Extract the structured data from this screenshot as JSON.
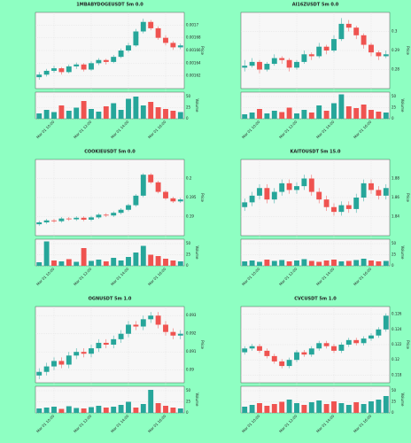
{
  "chart_data": [
    {
      "type": "candlestick",
      "title": "1MBABYDOGEUSDT 5m 0.0",
      "y_label": "Price",
      "volume_label": "Volume",
      "ohlc": [
        [
          0.001618,
          0.001626,
          0.001614,
          0.001622
        ],
        [
          0.001622,
          0.001631,
          0.001619,
          0.001628
        ],
        [
          0.001628,
          0.001636,
          0.001625,
          0.001632
        ],
        [
          0.001632,
          0.001634,
          0.001622,
          0.001626
        ],
        [
          0.001626,
          0.001638,
          0.001624,
          0.001635
        ],
        [
          0.001635,
          0.001641,
          0.001631,
          0.001638
        ],
        [
          0.001638,
          0.00164,
          0.001627,
          0.00163
        ],
        [
          0.00163,
          0.001643,
          0.001628,
          0.00164
        ],
        [
          0.00164,
          0.001648,
          0.001637,
          0.001645
        ],
        [
          0.001645,
          0.001647,
          0.001638,
          0.001642
        ],
        [
          0.001642,
          0.001653,
          0.00164,
          0.00165
        ],
        [
          0.00165,
          0.001663,
          0.001648,
          0.00166
        ],
        [
          0.00166,
          0.001672,
          0.001657,
          0.001668
        ],
        [
          0.001668,
          0.001694,
          0.001666,
          0.00169
        ],
        [
          0.00169,
          0.00171,
          0.001687,
          0.001705
        ],
        [
          0.001705,
          0.001708,
          0.001692,
          0.001695
        ],
        [
          0.001695,
          0.001698,
          0.001677,
          0.00168
        ],
        [
          0.00168,
          0.001684,
          0.001668,
          0.001672
        ],
        [
          0.001672,
          0.001675,
          0.001661,
          0.001665
        ],
        [
          0.001665,
          0.001671,
          0.001662,
          0.001668
        ]
      ],
      "volume": [
        12,
        20,
        15,
        30,
        18,
        25,
        40,
        22,
        16,
        28,
        35,
        20,
        45,
        50,
        30,
        38,
        26,
        22,
        18,
        15
      ],
      "ylim": [
        0.0016,
        0.00172
      ],
      "yticks": [
        0.00162,
        0.00164,
        0.00166,
        0.00168,
        0.0017
      ],
      "vlim": [
        0,
        60
      ],
      "vticks": [
        0,
        25,
        50
      ],
      "xticks": [
        {
          "value": 2,
          "label": "Mar 01 10:00"
        },
        {
          "value": 7,
          "label": "Mar 01 12:00"
        },
        {
          "value": 12,
          "label": "Mar 01 14:00"
        },
        {
          "value": 17,
          "label": "Mar 01 16:00"
        }
      ],
      "up_color": "#26a69a",
      "down_color": "#ef5350",
      "grid": true
    },
    {
      "type": "candlestick",
      "title": "AI16ZUSDT 5m 0.0",
      "y_label": "Price",
      "volume_label": "Volume",
      "ohlc": [
        [
          0.281,
          0.285,
          0.279,
          0.282
        ],
        [
          0.282,
          0.286,
          0.281,
          0.284
        ],
        [
          0.284,
          0.285,
          0.278,
          0.28
        ],
        [
          0.28,
          0.284,
          0.279,
          0.283
        ],
        [
          0.283,
          0.288,
          0.282,
          0.286
        ],
        [
          0.286,
          0.287,
          0.283,
          0.285
        ],
        [
          0.285,
          0.286,
          0.279,
          0.281
        ],
        [
          0.281,
          0.285,
          0.28,
          0.284
        ],
        [
          0.284,
          0.29,
          0.283,
          0.288
        ],
        [
          0.288,
          0.289,
          0.285,
          0.287
        ],
        [
          0.287,
          0.294,
          0.286,
          0.292
        ],
        [
          0.292,
          0.293,
          0.288,
          0.29
        ],
        [
          0.29,
          0.298,
          0.289,
          0.296
        ],
        [
          0.296,
          0.307,
          0.295,
          0.304
        ],
        [
          0.304,
          0.306,
          0.3,
          0.302
        ],
        [
          0.302,
          0.303,
          0.296,
          0.298
        ],
        [
          0.298,
          0.299,
          0.291,
          0.293
        ],
        [
          0.293,
          0.294,
          0.287,
          0.289
        ],
        [
          0.289,
          0.29,
          0.285,
          0.287
        ],
        [
          0.287,
          0.29,
          0.286,
          0.288
        ]
      ],
      "volume": [
        10,
        14,
        22,
        12,
        18,
        15,
        25,
        12,
        20,
        14,
        30,
        18,
        35,
        55,
        28,
        24,
        32,
        20,
        16,
        14
      ],
      "ylim": [
        0.27,
        0.31
      ],
      "yticks": [
        0.28,
        0.29,
        0.3
      ],
      "vlim": [
        0,
        60
      ],
      "vticks": [
        0,
        25,
        50
      ],
      "xticks": [
        {
          "value": 2,
          "label": "Mar 01 10:00"
        },
        {
          "value": 7,
          "label": "Mar 01 12:00"
        },
        {
          "value": 12,
          "label": "Mar 01 14:00"
        },
        {
          "value": 17,
          "label": "Mar 01 16:00"
        }
      ],
      "up_color": "#26a69a",
      "down_color": "#ef5350",
      "grid": true
    },
    {
      "type": "candlestick",
      "title": "COOKIEUSDT 5m 0.0",
      "y_label": "Price",
      "volume_label": "Volume",
      "ohlc": [
        [
          0.188,
          0.1889,
          0.1876,
          0.1885
        ],
        [
          0.1885,
          0.1894,
          0.1881,
          0.189
        ],
        [
          0.189,
          0.1894,
          0.1884,
          0.1888
        ],
        [
          0.1888,
          0.1899,
          0.1884,
          0.1895
        ],
        [
          0.1895,
          0.1899,
          0.1889,
          0.1893
        ],
        [
          0.1893,
          0.1901,
          0.1889,
          0.1897
        ],
        [
          0.1897,
          0.1901,
          0.1888,
          0.1892
        ],
        [
          0.1892,
          0.1902,
          0.1888,
          0.1898
        ],
        [
          0.1898,
          0.1909,
          0.1894,
          0.1905
        ],
        [
          0.1905,
          0.1909,
          0.1899,
          0.1903
        ],
        [
          0.1903,
          0.1914,
          0.1899,
          0.191
        ],
        [
          0.191,
          0.1922,
          0.1906,
          0.1918
        ],
        [
          0.1918,
          0.1934,
          0.1914,
          0.193
        ],
        [
          0.193,
          0.1959,
          0.1926,
          0.1955
        ],
        [
          0.1955,
          0.2014,
          0.1951,
          0.201
        ],
        [
          0.201,
          0.2014,
          0.1986,
          0.199
        ],
        [
          0.199,
          0.1994,
          0.1961,
          0.1965
        ],
        [
          0.1965,
          0.1969,
          0.1944,
          0.1948
        ],
        [
          0.1948,
          0.1952,
          0.1936,
          0.194
        ],
        [
          0.194,
          0.1949,
          0.1936,
          0.1945
        ]
      ],
      "volume": [
        8,
        55,
        12,
        10,
        15,
        9,
        40,
        11,
        14,
        10,
        18,
        12,
        20,
        30,
        45,
        25,
        22,
        16,
        12,
        10
      ],
      "ylim": [
        0.185,
        0.205
      ],
      "yticks": [
        0.19,
        0.195,
        0.2
      ],
      "vlim": [
        0,
        60
      ],
      "vticks": [
        0,
        25,
        50
      ],
      "xticks": [
        {
          "value": 2,
          "label": "Mar 01 10:00"
        },
        {
          "value": 7,
          "label": "Mar 01 12:00"
        },
        {
          "value": 12,
          "label": "Mar 01 14:00"
        },
        {
          "value": 17,
          "label": "Mar 01 16:00"
        }
      ],
      "up_color": "#26a69a",
      "down_color": "#ef5350",
      "grid": true
    },
    {
      "type": "candlestick",
      "title": "KAITOUSDT 5m 15.0",
      "y_label": "Price",
      "volume_label": "Volume",
      "ohlc": [
        [
          1.85,
          1.859,
          1.846,
          1.855
        ],
        [
          1.855,
          1.866,
          1.851,
          1.862
        ],
        [
          1.862,
          1.874,
          1.858,
          1.87
        ],
        [
          1.87,
          1.874,
          1.854,
          1.858
        ],
        [
          1.858,
          1.87,
          1.854,
          1.866
        ],
        [
          1.866,
          1.879,
          1.862,
          1.875
        ],
        [
          1.875,
          1.879,
          1.864,
          1.868
        ],
        [
          1.868,
          1.876,
          1.864,
          1.872
        ],
        [
          1.872,
          1.884,
          1.868,
          1.88
        ],
        [
          1.88,
          1.884,
          1.862,
          1.866
        ],
        [
          1.866,
          1.87,
          1.854,
          1.858
        ],
        [
          1.858,
          1.862,
          1.846,
          1.85
        ],
        [
          1.85,
          1.854,
          1.841,
          1.845
        ],
        [
          1.845,
          1.856,
          1.841,
          1.852
        ],
        [
          1.852,
          1.856,
          1.844,
          1.848
        ],
        [
          1.848,
          1.864,
          1.844,
          1.86
        ],
        [
          1.86,
          1.879,
          1.856,
          1.875
        ],
        [
          1.875,
          1.879,
          1.864,
          1.868
        ],
        [
          1.868,
          1.872,
          1.858,
          1.862
        ],
        [
          1.862,
          1.874,
          1.858,
          1.87
        ]
      ],
      "volume": [
        10,
        12,
        9,
        14,
        11,
        13,
        10,
        12,
        15,
        11,
        9,
        12,
        14,
        10,
        11,
        13,
        16,
        12,
        10,
        11
      ],
      "ylim": [
        1.82,
        1.9
      ],
      "yticks": [
        1.84,
        1.86,
        1.88
      ],
      "vlim": [
        0,
        60
      ],
      "vticks": [
        0,
        25,
        50
      ],
      "xticks": [
        {
          "value": 2,
          "label": "Mar 01 10:00"
        },
        {
          "value": 7,
          "label": "Mar 01 12:00"
        },
        {
          "value": 12,
          "label": "Mar 01 14:00"
        },
        {
          "value": 17,
          "label": "Mar 01 16:00"
        }
      ],
      "up_color": "#26a69a",
      "down_color": "#ef5350",
      "grid": true
    },
    {
      "type": "candlestick",
      "title": "OGNUSDT 5m 1.0",
      "y_label": "Price",
      "volume_label": "Volume",
      "ohlc": [
        [
          0.0897,
          0.0901,
          0.0895,
          0.0899
        ],
        [
          0.0899,
          0.0904,
          0.0897,
          0.0902
        ],
        [
          0.0902,
          0.0907,
          0.09,
          0.0905
        ],
        [
          0.0905,
          0.0907,
          0.0901,
          0.0903
        ],
        [
          0.0903,
          0.091,
          0.0901,
          0.0908
        ],
        [
          0.0908,
          0.0912,
          0.0906,
          0.091
        ],
        [
          0.091,
          0.0912,
          0.0907,
          0.0909
        ],
        [
          0.0909,
          0.0914,
          0.0907,
          0.0912
        ],
        [
          0.0912,
          0.0917,
          0.091,
          0.0915
        ],
        [
          0.0915,
          0.0917,
          0.0912,
          0.0914
        ],
        [
          0.0914,
          0.0919,
          0.0912,
          0.0917
        ],
        [
          0.0917,
          0.0922,
          0.0915,
          0.092
        ],
        [
          0.092,
          0.0927,
          0.0918,
          0.0925
        ],
        [
          0.0925,
          0.0927,
          0.0922,
          0.0924
        ],
        [
          0.0924,
          0.093,
          0.0922,
          0.0928
        ],
        [
          0.0928,
          0.0932,
          0.0926,
          0.093
        ],
        [
          0.093,
          0.0932,
          0.0923,
          0.0925
        ],
        [
          0.0925,
          0.0927,
          0.0919,
          0.0921
        ],
        [
          0.0921,
          0.0923,
          0.0917,
          0.0919
        ],
        [
          0.0919,
          0.0922,
          0.0917,
          0.092
        ]
      ],
      "volume": [
        10,
        12,
        14,
        9,
        15,
        11,
        10,
        13,
        16,
        12,
        14,
        18,
        25,
        12,
        20,
        52,
        22,
        16,
        12,
        10
      ],
      "ylim": [
        0.0893,
        0.0935
      ],
      "yticks": [
        0.09,
        0.091,
        0.092,
        0.093
      ],
      "vlim": [
        0,
        60
      ],
      "vticks": [
        0,
        25,
        50
      ],
      "xticks": [
        {
          "value": 2,
          "label": "Mar 01 10:00"
        },
        {
          "value": 7,
          "label": "Mar 01 12:00"
        },
        {
          "value": 12,
          "label": "Mar 01 14:00"
        },
        {
          "value": 17,
          "label": "Mar 01 16:00"
        }
      ],
      "up_color": "#26a69a",
      "down_color": "#ef5350",
      "grid": true
    },
    {
      "type": "candlestick",
      "title": "CVCUSDT 5m 1.0",
      "y_label": "Price",
      "volume_label": "Volume",
      "ohlc": [
        [
          0.121,
          0.1218,
          0.1207,
          0.1215
        ],
        [
          0.1215,
          0.1221,
          0.1212,
          0.1218
        ],
        [
          0.1218,
          0.1221,
          0.1209,
          0.1212
        ],
        [
          0.1212,
          0.1215,
          0.1202,
          0.1205
        ],
        [
          0.1205,
          0.1208,
          0.1195,
          0.1198
        ],
        [
          0.1198,
          0.1201,
          0.1189,
          0.1192
        ],
        [
          0.1192,
          0.1203,
          0.1189,
          0.12
        ],
        [
          0.12,
          0.1213,
          0.1197,
          0.121
        ],
        [
          0.121,
          0.1213,
          0.1204,
          0.1207
        ],
        [
          0.1207,
          0.1218,
          0.1204,
          0.1215
        ],
        [
          0.1215,
          0.1225,
          0.1212,
          0.1222
        ],
        [
          0.1222,
          0.1225,
          0.1215,
          0.1218
        ],
        [
          0.1218,
          0.1221,
          0.1209,
          0.1212
        ],
        [
          0.1212,
          0.1223,
          0.1209,
          0.122
        ],
        [
          0.122,
          0.1229,
          0.1217,
          0.1226
        ],
        [
          0.1226,
          0.1229,
          0.1219,
          0.1222
        ],
        [
          0.1222,
          0.1231,
          0.1219,
          0.1228
        ],
        [
          0.1228,
          0.1235,
          0.1225,
          0.1232
        ],
        [
          0.1232,
          0.1243,
          0.1229,
          0.124
        ],
        [
          0.124,
          0.1261,
          0.1237,
          0.1258
        ]
      ],
      "volume": [
        14,
        18,
        22,
        16,
        20,
        25,
        30,
        22,
        18,
        24,
        28,
        20,
        26,
        22,
        18,
        24,
        20,
        26,
        30,
        38
      ],
      "ylim": [
        0.117,
        0.127
      ],
      "yticks": [
        0.118,
        0.12,
        0.122,
        0.124,
        0.126
      ],
      "vlim": [
        0,
        60
      ],
      "vticks": [
        0,
        25,
        50
      ],
      "xticks": [
        {
          "value": 2,
          "label": "Mar 01 10:00"
        },
        {
          "value": 7,
          "label": "Mar 01 12:00"
        },
        {
          "value": 12,
          "label": "Mar 01 14:00"
        },
        {
          "value": 17,
          "label": "Mar 01 16:00"
        }
      ],
      "up_color": "#26a69a",
      "down_color": "#ef5350",
      "grid": true
    }
  ]
}
